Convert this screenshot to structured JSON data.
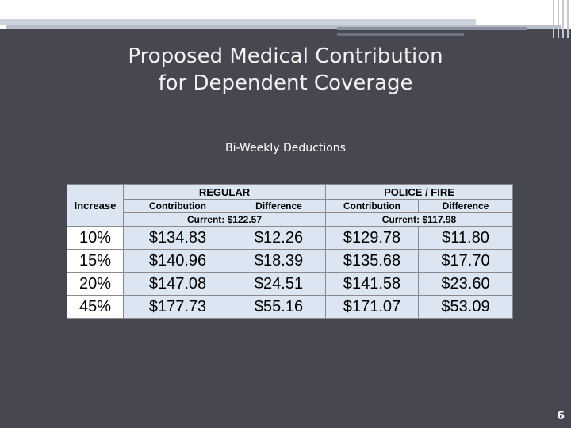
{
  "slide": {
    "title_line1": "Proposed Medical Contribution",
    "title_line2": "for Dependent Coverage",
    "subtitle": "Bi-Weekly Deductions",
    "page_number": "6"
  },
  "table": {
    "increase_header": "Increase",
    "groups": [
      {
        "name": "REGULAR",
        "contribution_label": "Contribution",
        "difference_label": "Difference",
        "current": "Current: $122.57"
      },
      {
        "name": "POLICE / FIRE",
        "contribution_label": "Contribution",
        "difference_label": "Difference",
        "current": "Current: $117.98"
      }
    ],
    "rows": [
      {
        "increase": "10%",
        "reg_contribution": "$134.83",
        "reg_difference": "$12.26",
        "pf_contribution": "$129.78",
        "pf_difference": "$11.80"
      },
      {
        "increase": "15%",
        "reg_contribution": "$140.96",
        "reg_difference": "$18.39",
        "pf_contribution": "$135.68",
        "pf_difference": "$17.70"
      },
      {
        "increase": "20%",
        "reg_contribution": "$147.08",
        "reg_difference": "$24.51",
        "pf_contribution": "$141.58",
        "pf_difference": "$23.60"
      },
      {
        "increase": "45%",
        "reg_contribution": "$177.73",
        "reg_difference": "$55.16",
        "pf_contribution": "$171.07",
        "pf_difference": "$53.09"
      }
    ]
  }
}
